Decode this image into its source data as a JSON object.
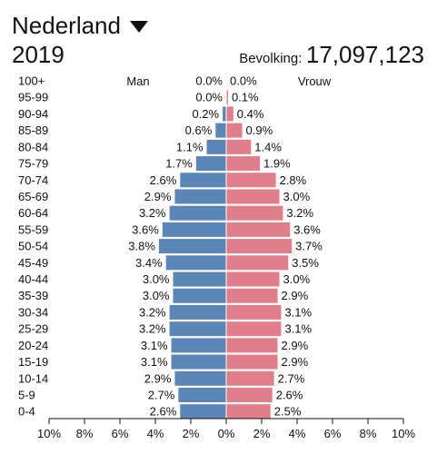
{
  "header": {
    "country": "Nederland",
    "year": "2019",
    "population_label": "Bevolking:",
    "population_value": "17,097,123"
  },
  "colors": {
    "male": "#5b86b5",
    "female": "#e07f8b"
  },
  "icons": {
    "dropdown": "triangle-down-icon"
  },
  "chart_data": {
    "type": "bar",
    "orientation": "horizontal",
    "chart_style": "population-pyramid",
    "categories": [
      "100+",
      "95-99",
      "90-94",
      "85-89",
      "80-84",
      "75-79",
      "70-74",
      "65-69",
      "60-64",
      "55-59",
      "50-54",
      "45-49",
      "40-44",
      "35-39",
      "30-34",
      "25-29",
      "20-24",
      "15-19",
      "10-14",
      "5-9",
      "0-4"
    ],
    "series": [
      {
        "name": "Man",
        "side": "left",
        "color": "#5b86b5",
        "values": [
          0.0,
          0.0,
          0.2,
          0.6,
          1.1,
          1.7,
          2.6,
          2.9,
          3.2,
          3.6,
          3.8,
          3.4,
          3.0,
          3.0,
          3.2,
          3.2,
          3.1,
          3.1,
          2.9,
          2.7,
          2.6
        ]
      },
      {
        "name": "Vrouw",
        "side": "right",
        "color": "#e07f8b",
        "values": [
          0.0,
          0.1,
          0.4,
          0.9,
          1.4,
          1.9,
          2.8,
          3.0,
          3.2,
          3.6,
          3.7,
          3.5,
          3.0,
          2.9,
          3.1,
          3.1,
          2.9,
          2.9,
          2.7,
          2.6,
          2.5
        ]
      }
    ],
    "value_format": "{v}%",
    "xlim": [
      -10,
      10
    ],
    "xticks": [
      -10,
      -8,
      -6,
      -4,
      -2,
      0,
      2,
      4,
      6,
      8,
      10
    ],
    "xtick_labels": [
      "10%",
      "8%",
      "6%",
      "4%",
      "2%",
      "0%",
      "2%",
      "4%",
      "6%",
      "8%",
      "10%"
    ],
    "grid": false
  }
}
